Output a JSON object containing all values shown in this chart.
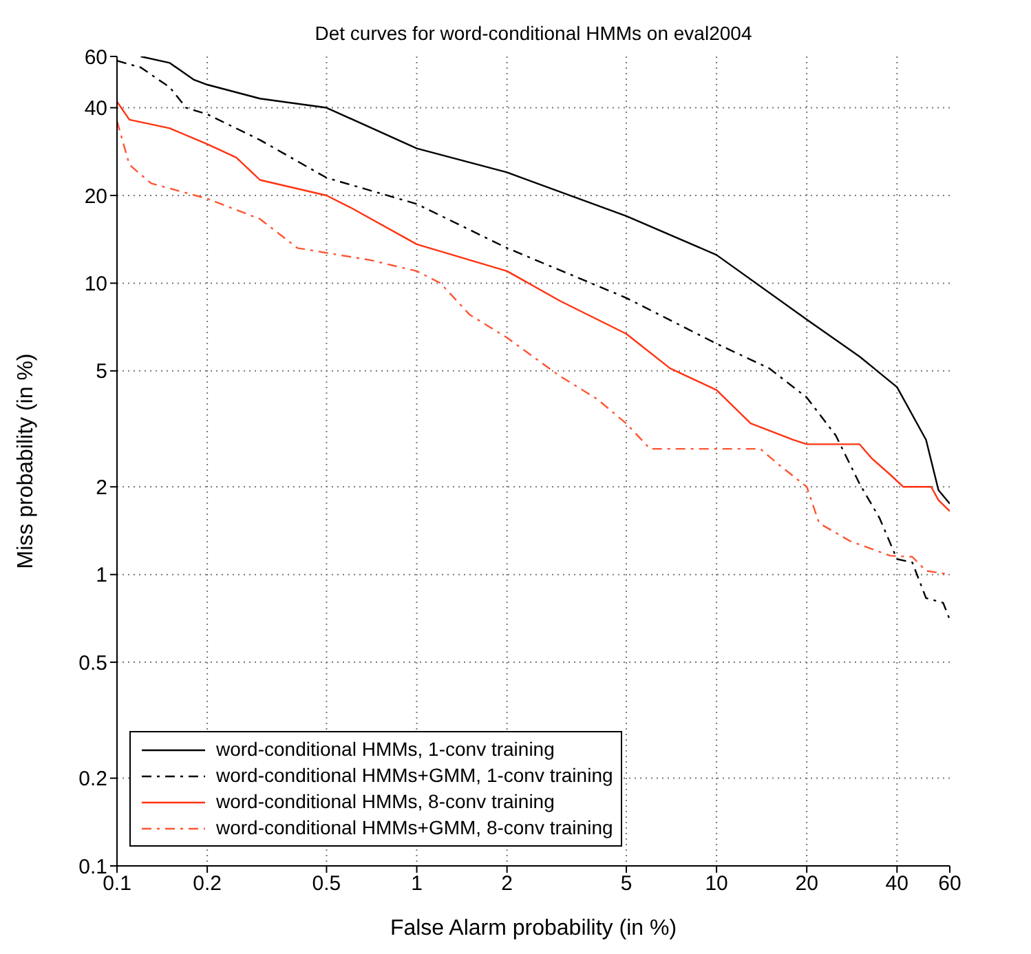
{
  "chart_data": {
    "type": "line",
    "title": "Det curves for word-conditional HMMs on eval2004",
    "xlabel": "False Alarm probability (in %)",
    "ylabel": "Miss probability (in %)",
    "xlim": [
      0.1,
      60
    ],
    "ylim": [
      0.1,
      60
    ],
    "xticks": [
      0.1,
      0.2,
      0.5,
      1,
      2,
      5,
      10,
      20,
      40,
      60
    ],
    "yticks": [
      0.1,
      0.2,
      0.5,
      1,
      2,
      5,
      10,
      20,
      40,
      60
    ],
    "grid": true,
    "legend": "bottom left",
    "marker": "none",
    "log": "xy",
    "series": [
      {
        "name": "word-conditional HMMs, 1-conv training",
        "color": "#000000",
        "line_style": "solid",
        "x": [
          0.12,
          0.15,
          0.18,
          0.2,
          0.3,
          0.5,
          1,
          2,
          5,
          10,
          20,
          30,
          40,
          50,
          55,
          60
        ],
        "values": [
          60,
          57,
          50,
          48,
          43,
          40,
          29,
          24,
          17,
          12.5,
          7.5,
          5.6,
          4.4,
          2.9,
          1.95,
          1.75
        ]
      },
      {
        "name": "word-conditional HMMs+GMM, 1-conv training",
        "color": "#000000",
        "line_style": "dashed",
        "x": [
          0.1,
          0.12,
          0.15,
          0.17,
          0.2,
          0.3,
          0.5,
          1,
          2,
          5,
          10,
          15,
          20,
          25,
          30,
          35,
          40,
          45,
          50,
          57,
          60
        ],
        "values": [
          58,
          55,
          47,
          40,
          38,
          31,
          23,
          18.7,
          13.2,
          8.9,
          6.2,
          5.1,
          4.05,
          3,
          2.05,
          1.56,
          1.13,
          1.1,
          0.83,
          0.8,
          0.7
        ]
      },
      {
        "name": "word-conditional HMMs, 8-conv training",
        "color": "#ff3311",
        "line_style": "solid",
        "x": [
          0.1,
          0.11,
          0.15,
          0.2,
          0.25,
          0.3,
          0.5,
          0.6,
          1,
          2,
          3,
          5,
          7,
          10,
          13,
          18,
          20,
          30,
          33,
          38,
          42,
          52,
          55,
          60
        ],
        "values": [
          42,
          36.4,
          34,
          30,
          27,
          22.6,
          20,
          18.2,
          13.6,
          11,
          8.7,
          6.7,
          5.1,
          4.3,
          3.3,
          2.9,
          2.8,
          2.8,
          2.5,
          2.2,
          2,
          2,
          1.8,
          1.65
        ]
      },
      {
        "name": "word-conditional HMMs+GMM, 8-conv training",
        "color": "#ff5533",
        "line_style": "dashed",
        "x": [
          0.1,
          0.11,
          0.13,
          0.2,
          0.3,
          0.4,
          0.7,
          1,
          1.2,
          1.5,
          2,
          3,
          4,
          5,
          6,
          14,
          16,
          20,
          22,
          28,
          38,
          45,
          50,
          60
        ],
        "values": [
          36,
          25.5,
          22,
          19.5,
          16.6,
          13.2,
          12,
          11,
          10,
          7.8,
          6.5,
          4.8,
          4,
          3.3,
          2.7,
          2.7,
          2.4,
          2,
          1.5,
          1.3,
          1.16,
          1.15,
          1.03,
          1
        ]
      }
    ]
  }
}
